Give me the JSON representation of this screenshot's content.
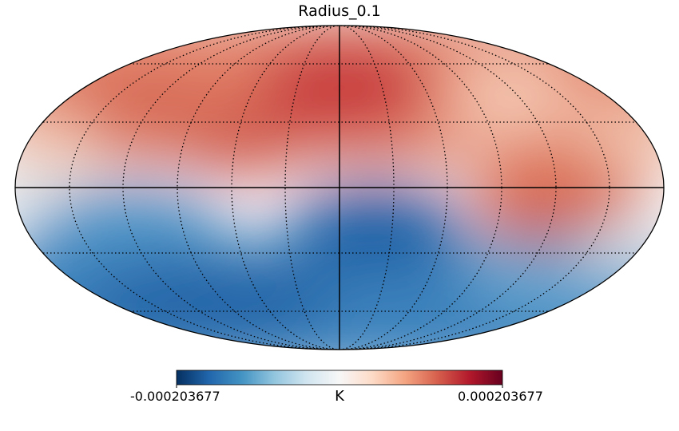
{
  "title": "Radius_0.1",
  "projection": "mollweide",
  "colormap": {
    "name": "RdBu_r",
    "stops": [
      "#053061",
      "#2166ac",
      "#4393c3",
      "#92c5de",
      "#d1e5f0",
      "#f7f7f7",
      "#fddbc7",
      "#f4a582",
      "#d6604d",
      "#b2182b",
      "#67001f"
    ]
  },
  "colorbar": {
    "min_label": "-0.000203677",
    "max_label": "0.000203677",
    "unit": "K"
  },
  "graticule": {
    "style": "dotted",
    "color": "#000000"
  }
}
